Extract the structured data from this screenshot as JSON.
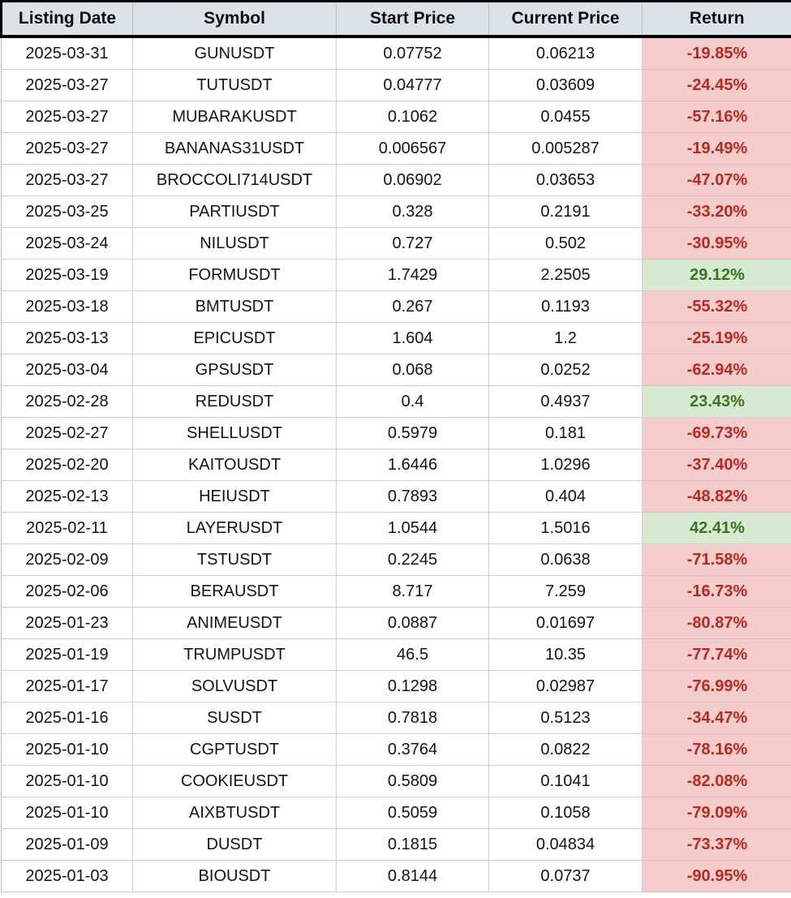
{
  "chart_data": {
    "type": "table",
    "title": "",
    "columns": [
      "Listing Date",
      "Symbol",
      "Start Price",
      "Current Price",
      "Return"
    ],
    "rows": [
      [
        "2025-03-31",
        "GUNUSDT",
        "0.07752",
        "0.06213",
        "-19.85%"
      ],
      [
        "2025-03-27",
        "TUTUSDT",
        "0.04777",
        "0.03609",
        "-24.45%"
      ],
      [
        "2025-03-27",
        "MUBARAKUSDT",
        "0.1062",
        "0.0455",
        "-57.16%"
      ],
      [
        "2025-03-27",
        "BANANAS31USDT",
        "0.006567",
        "0.005287",
        "-19.49%"
      ],
      [
        "2025-03-27",
        "BROCCOLI714USDT",
        "0.06902",
        "0.03653",
        "-47.07%"
      ],
      [
        "2025-03-25",
        "PARTIUSDT",
        "0.328",
        "0.2191",
        "-33.20%"
      ],
      [
        "2025-03-24",
        "NILUSDT",
        "0.727",
        "0.502",
        "-30.95%"
      ],
      [
        "2025-03-19",
        "FORMUSDT",
        "1.7429",
        "2.2505",
        "29.12%"
      ],
      [
        "2025-03-18",
        "BMTUSDT",
        "0.267",
        "0.1193",
        "-55.32%"
      ],
      [
        "2025-03-13",
        "EPICUSDT",
        "1.604",
        "1.2",
        "-25.19%"
      ],
      [
        "2025-03-04",
        "GPSUSDT",
        "0.068",
        "0.0252",
        "-62.94%"
      ],
      [
        "2025-02-28",
        "REDUSDT",
        "0.4",
        "0.4937",
        "23.43%"
      ],
      [
        "2025-02-27",
        "SHELLUSDT",
        "0.5979",
        "0.181",
        "-69.73%"
      ],
      [
        "2025-02-20",
        "KAITOUSDT",
        "1.6446",
        "1.0296",
        "-37.40%"
      ],
      [
        "2025-02-13",
        "HEIUSDT",
        "0.7893",
        "0.404",
        "-48.82%"
      ],
      [
        "2025-02-11",
        "LAYERUSDT",
        "1.0544",
        "1.5016",
        "42.41%"
      ],
      [
        "2025-02-09",
        "TSTUSDT",
        "0.2245",
        "0.0638",
        "-71.58%"
      ],
      [
        "2025-02-06",
        "BERAUSDT",
        "8.717",
        "7.259",
        "-16.73%"
      ],
      [
        "2025-01-23",
        "ANIMEUSDT",
        "0.0887",
        "0.01697",
        "-80.87%"
      ],
      [
        "2025-01-19",
        "TRUMPUSDT",
        "46.5",
        "10.35",
        "-77.74%"
      ],
      [
        "2025-01-17",
        "SOLVUSDT",
        "0.1298",
        "0.02987",
        "-76.99%"
      ],
      [
        "2025-01-16",
        "SUSDT",
        "0.7818",
        "0.5123",
        "-34.47%"
      ],
      [
        "2025-01-10",
        "CGPTUSDT",
        "0.3764",
        "0.0822",
        "-78.16%"
      ],
      [
        "2025-01-10",
        "COOKIEUSDT",
        "0.5809",
        "0.1041",
        "-82.08%"
      ],
      [
        "2025-01-10",
        "AIXBTUSDT",
        "0.5059",
        "0.1058",
        "-79.09%"
      ],
      [
        "2025-01-09",
        "DUSDT",
        "0.1815",
        "0.04834",
        "-73.37%"
      ],
      [
        "2025-01-03",
        "BIOUSDT",
        "0.8144",
        "0.0737",
        "-90.95%"
      ]
    ]
  },
  "colors": {
    "header_background": "#dce3e8",
    "negative_background": "#f4cccc",
    "negative_text": "#b52a21",
    "positive_background": "#d9ead3",
    "positive_text": "#38761d",
    "grid_line": "#cdd1d4",
    "outer_border": "#000000"
  }
}
